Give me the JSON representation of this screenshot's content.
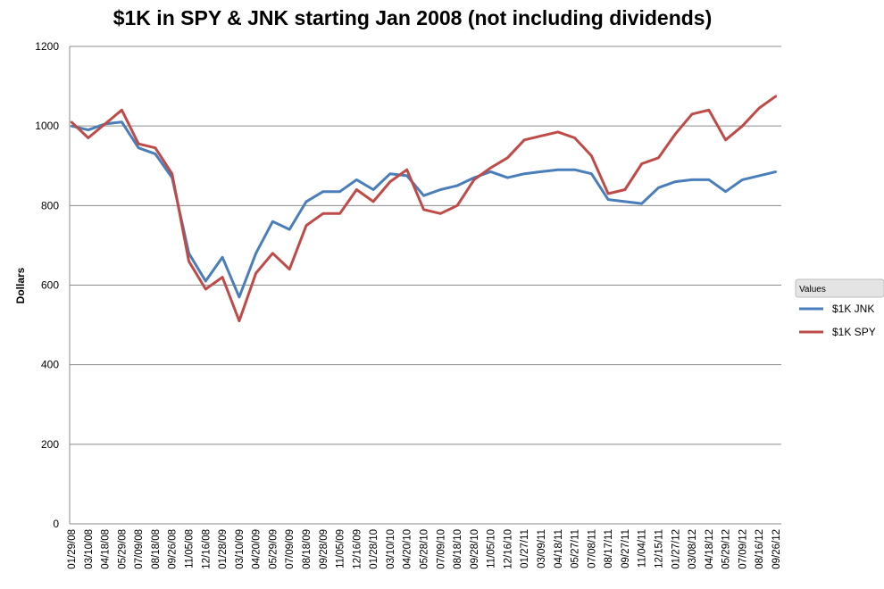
{
  "chart_data": {
    "type": "line",
    "title": "$1K in SPY & JNK starting Jan 2008 (not including dividends)",
    "xlabel": "",
    "ylabel": "Dollars",
    "ylim": [
      0,
      1200
    ],
    "yticks": [
      0,
      200,
      400,
      600,
      800,
      1000,
      1200
    ],
    "grid": true,
    "legend_title": "Values",
    "legend_position": "right",
    "categories": [
      "01/29/08",
      "03/10/08",
      "04/18/08",
      "05/29/08",
      "07/09/08",
      "08/18/08",
      "09/26/08",
      "11/05/08",
      "12/16/08",
      "01/28/09",
      "03/10/09",
      "04/20/09",
      "05/29/09",
      "07/09/09",
      "08/18/09",
      "09/28/09",
      "11/05/09",
      "12/16/09",
      "01/28/10",
      "03/10/10",
      "04/20/10",
      "05/28/10",
      "07/09/10",
      "08/18/10",
      "09/28/10",
      "11/05/10",
      "12/16/10",
      "01/27/11",
      "03/09/11",
      "04/18/11",
      "05/27/11",
      "07/08/11",
      "08/17/11",
      "09/27/11",
      "11/04/11",
      "12/15/11",
      "01/27/12",
      "03/08/12",
      "04/18/12",
      "05/29/12",
      "07/09/12",
      "08/16/12",
      "09/26/12"
    ],
    "series": [
      {
        "name": "$1K JNK",
        "color": "#4a7ebb",
        "values": [
          1000,
          990,
          1005,
          1010,
          945,
          930,
          870,
          680,
          610,
          670,
          570,
          680,
          760,
          740,
          810,
          835,
          835,
          865,
          840,
          880,
          875,
          825,
          840,
          850,
          870,
          885,
          870,
          880,
          885,
          890,
          890,
          880,
          815,
          810,
          805,
          845,
          860,
          865,
          865,
          835,
          865,
          875,
          885
        ]
      },
      {
        "name": "$1K SPY",
        "color": "#be4b48",
        "values": [
          1010,
          970,
          1005,
          1040,
          955,
          945,
          880,
          660,
          590,
          620,
          510,
          630,
          680,
          640,
          750,
          780,
          780,
          840,
          810,
          860,
          890,
          790,
          780,
          800,
          865,
          895,
          920,
          965,
          975,
          985,
          970,
          925,
          830,
          840,
          905,
          920,
          980,
          1030,
          1040,
          965,
          1000,
          1045,
          1075
        ]
      }
    ]
  }
}
